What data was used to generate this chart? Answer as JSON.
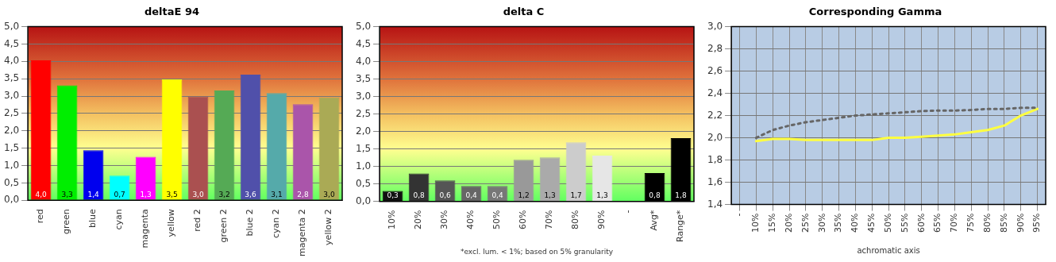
{
  "chart_data": [
    {
      "type": "bar",
      "title": "deltaE 94",
      "categories": [
        "red",
        "green",
        "blue",
        "cyan",
        "magenta",
        "yellow",
        "red 2",
        "green 2",
        "blue 2",
        "cyan 2",
        "magenta 2",
        "yellow 2"
      ],
      "values": [
        4.03,
        3.31,
        1.44,
        0.71,
        1.25,
        3.48,
        2.99,
        3.16,
        3.62,
        3.09,
        2.77,
        2.96
      ],
      "colors": [
        "#ff0000",
        "#00ee00",
        "#0000ee",
        "#00ffff",
        "#ff00ff",
        "#ffff00",
        "#aa5050",
        "#55aa55",
        "#5050aa",
        "#55aaaa",
        "#aa55aa",
        "#aaaa55"
      ],
      "value_labels": [
        "4,0",
        "3,3",
        "1,4",
        "0,7",
        "1,3",
        "3,5",
        "3,0",
        "3,2",
        "3,6",
        "3,1",
        "2,8",
        "3,0"
      ],
      "ylim": [
        0,
        5
      ],
      "yticks": [
        {
          "value": 0,
          "label": "0,0"
        },
        {
          "value": 0.5,
          "label": "0,5"
        },
        {
          "value": 1,
          "label": "1,0"
        },
        {
          "value": 1.5,
          "label": "1,5"
        },
        {
          "value": 2,
          "label": "2,0"
        },
        {
          "value": 2.5,
          "label": "2,5"
        },
        {
          "value": 3,
          "label": "3,0"
        },
        {
          "value": 3.5,
          "label": "3,5"
        },
        {
          "value": 4,
          "label": "4,0"
        },
        {
          "value": 4.5,
          "label": "4,5"
        },
        {
          "value": 5,
          "label": "5,0"
        }
      ],
      "grid": "y"
    },
    {
      "type": "bar",
      "title": "delta C",
      "categories": [
        "10%",
        "20%",
        "30%",
        "40%",
        "50%",
        "60%",
        "70%",
        "80%",
        "90%",
        "-",
        "Avg*",
        "Range*"
      ],
      "values": [
        0.3,
        0.8,
        0.6,
        0.44,
        0.44,
        1.19,
        1.26,
        1.69,
        1.31,
        null,
        0.81,
        1.81
      ],
      "colors": [
        "#111111",
        "#333333",
        "#555555",
        "#666666",
        "#777777",
        "#999999",
        "#aaaaaa",
        "#cccccc",
        "#e6e6e6",
        "#000000",
        "#000000",
        "#000000"
      ],
      "value_labels": [
        "0,3",
        "0,8",
        "0,6",
        "0,4",
        "0,4",
        "1,2",
        "1,3",
        "1,7",
        "1,3",
        null,
        "0,8",
        "1,8"
      ],
      "ylim": [
        0,
        5
      ],
      "yticks": [
        {
          "value": 0,
          "label": "0,0"
        },
        {
          "value": 0.5,
          "label": "0,5"
        },
        {
          "value": 1,
          "label": "1,0"
        },
        {
          "value": 1.5,
          "label": "1,5"
        },
        {
          "value": 2,
          "label": "2,0"
        },
        {
          "value": 2.5,
          "label": "2,5"
        },
        {
          "value": 3,
          "label": "3,0"
        },
        {
          "value": 3.5,
          "label": "3,5"
        },
        {
          "value": 4,
          "label": "4,0"
        },
        {
          "value": 4.5,
          "label": "4,5"
        },
        {
          "value": 5,
          "label": "5,0"
        }
      ],
      "grid": "y",
      "annotations": [
        "*excl. lum. < 1%; based on 5% granularity"
      ]
    },
    {
      "type": "line",
      "title": "Corresponding Gamma",
      "xlabel": "achromatic axis",
      "categories": [
        "-",
        "10%",
        "15%",
        "20%",
        "25%",
        "30%",
        "35%",
        "40%",
        "45%",
        "50%",
        "55%",
        "60%",
        "65%",
        "70%",
        "75%",
        "80%",
        "85%",
        "90%",
        "95%"
      ],
      "series": [
        {
          "color": "#666666",
          "line_style": "dotted",
          "values": [
            null,
            2.0,
            2.07,
            2.11,
            2.14,
            2.16,
            2.18,
            2.2,
            2.21,
            2.22,
            2.23,
            2.24,
            2.245,
            2.245,
            2.25,
            2.26,
            2.26,
            2.27,
            2.27
          ]
        },
        {
          "color": "#ffff40",
          "line_style": "solid",
          "values": [
            null,
            1.97,
            1.99,
            1.99,
            1.98,
            1.98,
            1.98,
            1.98,
            1.98,
            2.0,
            2.0,
            2.01,
            2.02,
            2.03,
            2.05,
            2.07,
            2.11,
            2.2,
            2.26
          ]
        }
      ],
      "ylim": [
        1.4,
        3.0
      ],
      "yticks": [
        {
          "value": 1.4,
          "label": "1,4"
        },
        {
          "value": 1.6,
          "label": "1,6"
        },
        {
          "value": 1.8,
          "label": "1,8"
        },
        {
          "value": 2.0,
          "label": "2,0"
        },
        {
          "value": 2.2,
          "label": "2,2"
        },
        {
          "value": 2.4,
          "label": "2,4"
        },
        {
          "value": 2.6,
          "label": "2,6"
        },
        {
          "value": 2.8,
          "label": "2,8"
        },
        {
          "value": 3.0,
          "label": "3,0"
        }
      ],
      "grid": true,
      "marker": "none"
    }
  ]
}
